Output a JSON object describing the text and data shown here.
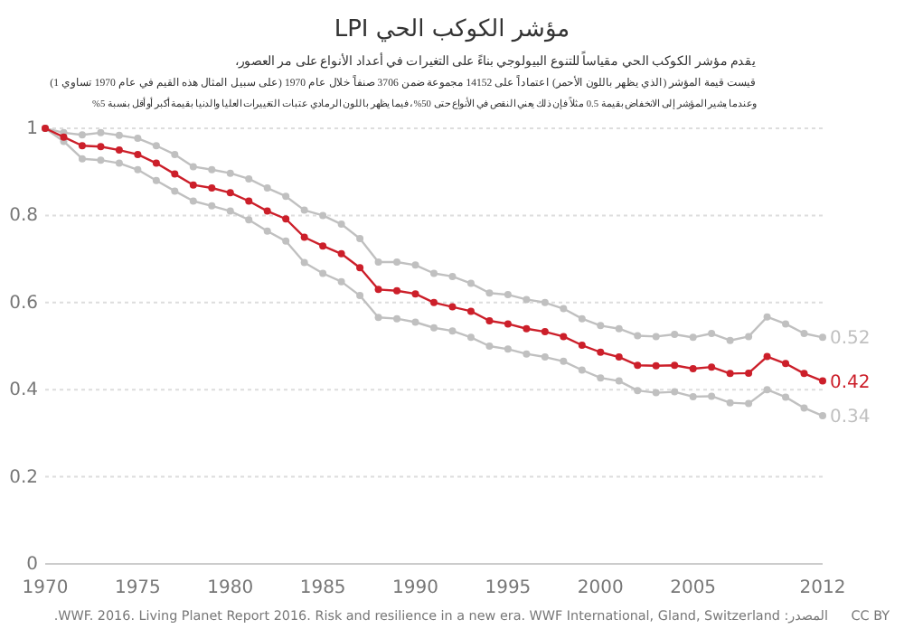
{
  "chart_data": {
    "type": "line",
    "title": "مؤشر الكوكب الحي LPI",
    "subtitle": "يقدم مؤشر الكوكب الحي مقياساً للتنوع البيولوجي بناءً على التغيرات في أعداد الأنواع على مر العصور،\nقيست قيمة المؤشر (الذي يظهر باللون الأحمر) اعتماداً على 14152 مجموعة ضمن 3706 صنفاً خلال عام 1970 (على سبيل المثال هذه القيم في عام 1970 تساوي 1)\nوعندما يشير المؤشر إلى الانخفاض بقيمة 0.5 مثلاً فإن ذلك يعني النقص في الأنواع حتى 50%، فيما يظهر باللون الرمادي عتبات التغييرات العليا والدنيا بقيمة أكبر أو أقل بنسبة 5%",
    "x": [
      1970,
      1971,
      1972,
      1973,
      1974,
      1975,
      1976,
      1977,
      1978,
      1979,
      1980,
      1981,
      1982,
      1983,
      1984,
      1985,
      1986,
      1987,
      1988,
      1989,
      1990,
      1991,
      1992,
      1993,
      1994,
      1995,
      1996,
      1997,
      1998,
      1999,
      2000,
      2001,
      2002,
      2003,
      2004,
      2005,
      2006,
      2007,
      2008,
      2009,
      2010,
      2011,
      2012
    ],
    "series": [
      {
        "color": "#c0c0c0",
        "values": [
          1.0,
          0.99,
          0.985,
          0.99,
          0.984,
          0.977,
          0.96,
          0.94,
          0.912,
          0.905,
          0.897,
          0.884,
          0.863,
          0.844,
          0.812,
          0.8,
          0.78,
          0.747,
          0.693,
          0.693,
          0.686,
          0.667,
          0.66,
          0.644,
          0.622,
          0.618,
          0.607,
          0.6,
          0.586,
          0.563,
          0.547,
          0.54,
          0.524,
          0.522,
          0.527,
          0.52,
          0.529,
          0.513,
          0.522,
          0.567,
          0.551,
          0.529,
          0.52
        ],
        "value_labels": [
          null,
          null,
          null,
          null,
          null,
          null,
          null,
          null,
          null,
          null,
          null,
          null,
          null,
          null,
          null,
          null,
          null,
          null,
          null,
          null,
          null,
          null,
          null,
          null,
          null,
          null,
          null,
          null,
          null,
          null,
          null,
          null,
          null,
          null,
          null,
          null,
          null,
          null,
          null,
          null,
          null,
          null,
          "0.52"
        ]
      },
      {
        "color": "#c0c0c0",
        "values": [
          1.0,
          0.97,
          0.93,
          0.927,
          0.92,
          0.905,
          0.88,
          0.856,
          0.833,
          0.822,
          0.81,
          0.79,
          0.764,
          0.741,
          0.692,
          0.667,
          0.648,
          0.616,
          0.566,
          0.563,
          0.555,
          0.542,
          0.535,
          0.52,
          0.5,
          0.493,
          0.482,
          0.475,
          0.465,
          0.445,
          0.427,
          0.42,
          0.398,
          0.393,
          0.395,
          0.384,
          0.385,
          0.37,
          0.368,
          0.4,
          0.383,
          0.358,
          0.34
        ],
        "value_labels": [
          null,
          null,
          null,
          null,
          null,
          null,
          null,
          null,
          null,
          null,
          null,
          null,
          null,
          null,
          null,
          null,
          null,
          null,
          null,
          null,
          null,
          null,
          null,
          null,
          null,
          null,
          null,
          null,
          null,
          null,
          null,
          null,
          null,
          null,
          null,
          null,
          null,
          null,
          null,
          null,
          null,
          null,
          "0.34"
        ]
      },
      {
        "color": "#cc1f2a",
        "values": [
          1.0,
          0.98,
          0.96,
          0.958,
          0.95,
          0.94,
          0.92,
          0.895,
          0.87,
          0.863,
          0.852,
          0.833,
          0.81,
          0.792,
          0.75,
          0.73,
          0.712,
          0.68,
          0.63,
          0.627,
          0.62,
          0.6,
          0.59,
          0.58,
          0.558,
          0.551,
          0.54,
          0.533,
          0.522,
          0.502,
          0.486,
          0.475,
          0.456,
          0.455,
          0.456,
          0.448,
          0.452,
          0.437,
          0.438,
          0.476,
          0.46,
          0.437,
          0.42
        ],
        "value_labels": [
          null,
          null,
          null,
          null,
          null,
          null,
          null,
          null,
          null,
          null,
          null,
          null,
          null,
          null,
          null,
          null,
          null,
          null,
          null,
          null,
          null,
          null,
          null,
          null,
          null,
          null,
          null,
          null,
          null,
          null,
          null,
          null,
          null,
          null,
          null,
          null,
          null,
          null,
          null,
          null,
          null,
          null,
          "0.42"
        ]
      }
    ],
    "xlim": [
      1970,
      2012
    ],
    "xticks": [
      1970,
      1975,
      1980,
      1985,
      1990,
      1995,
      2000,
      2005,
      2012
    ],
    "ylim": [
      0,
      1
    ],
    "yticks": [
      0,
      0.2,
      0.4,
      0.6,
      0.8,
      1
    ],
    "grid": "y",
    "marker": "circle",
    "line_style": "solid",
    "annotations": [
      "المصدر: WWF. 2016. Living Planet Report 2016. Risk and resilience in a new era. WWF International, Gland, Switzerland.",
      "CC BY"
    ]
  }
}
